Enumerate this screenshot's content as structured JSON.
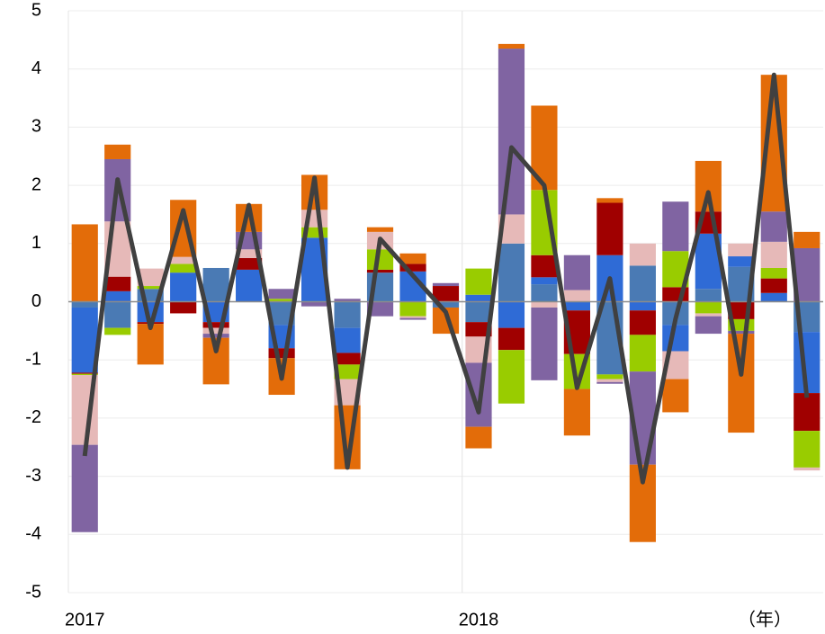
{
  "chart_data": {
    "type": "bar",
    "stacked": true,
    "categories": [
      "2017",
      null,
      null,
      null,
      null,
      null,
      null,
      null,
      null,
      null,
      null,
      null,
      "2018",
      null,
      null,
      null,
      null,
      null,
      null,
      null,
      null,
      null,
      null
    ],
    "x_label": "（年）",
    "series": [
      {
        "color": "#4a7ab4",
        "values": [
          -0.1,
          -0.45,
          0.22,
          0,
          0.58,
          0,
          -0.4,
          0,
          -0.45,
          0.5,
          0,
          -0.1,
          -0.35,
          1.0,
          0.3,
          0,
          -1.25,
          0.62,
          -0.4,
          0.22,
          0.6,
          0,
          -0.52
        ]
      },
      {
        "color": "#2f6bd6",
        "values": [
          -1.12,
          0.18,
          -0.35,
          0.5,
          -0.35,
          0.55,
          -0.4,
          1.1,
          -0.43,
          0,
          0.52,
          0,
          0.12,
          -0.45,
          0.12,
          -0.15,
          0.8,
          -0.15,
          -0.45,
          0.95,
          0.18,
          0.15,
          -1.05
        ]
      },
      {
        "color": "#a00000",
        "values": [
          -0.02,
          0.25,
          -0.03,
          -0.2,
          -0.1,
          0.2,
          -0.17,
          0,
          -0.2,
          0.05,
          0.13,
          0.27,
          -0.25,
          -0.38,
          0.38,
          -0.75,
          0.9,
          -0.42,
          0.25,
          0.38,
          -0.3,
          0.25,
          -0.65
        ]
      },
      {
        "color": "#99cc00",
        "values": [
          -0.02,
          -0.12,
          0.05,
          0.15,
          0,
          0,
          0.05,
          0.18,
          -0.25,
          0.35,
          -0.25,
          0,
          0.45,
          -0.92,
          1.12,
          -0.6,
          -0.08,
          -0.63,
          0.62,
          -0.2,
          -0.2,
          0.18,
          -0.63
        ]
      },
      {
        "color": "#e6b9b8",
        "values": [
          -1.2,
          0.95,
          0.3,
          0.12,
          -0.1,
          0.15,
          0,
          0.3,
          -0.45,
          0.3,
          -0.03,
          0,
          -0.45,
          0.5,
          -0.1,
          0.2,
          -0.05,
          0.38,
          -0.48,
          -0.05,
          0.22,
          0.45,
          -0.05
        ]
      },
      {
        "color": "#8064a2",
        "values": [
          -1.5,
          1.07,
          0,
          0,
          -0.07,
          0.3,
          0.17,
          -0.08,
          0.05,
          -0.25,
          -0.03,
          0.05,
          -1.1,
          2.85,
          -1.25,
          0.6,
          -0.03,
          -1.6,
          0.85,
          -0.3,
          -0.05,
          0.52,
          0.92
        ]
      },
      {
        "color": "#e36c09",
        "values": [
          1.33,
          0.25,
          -0.7,
          0.98,
          -0.8,
          0.48,
          -0.63,
          0.6,
          -1.1,
          0.08,
          0.18,
          -0.45,
          -0.37,
          0.08,
          1.45,
          -0.8,
          0.08,
          -1.33,
          -0.57,
          0.87,
          -1.7,
          2.35,
          0.28
        ]
      },
      {
        "type": "line",
        "color": "#404040",
        "values": [
          -2.65,
          2.1,
          -0.45,
          1.57,
          -0.85,
          1.66,
          -1.32,
          2.13,
          -2.85,
          1.08,
          0.45,
          -0.18,
          -1.9,
          2.65,
          2.0,
          -1.48,
          0.4,
          -3.1,
          -0.3,
          1.88,
          -1.25,
          3.9,
          -1.65
        ]
      }
    ],
    "ylim": [
      -5,
      5
    ],
    "yticks": [
      -5,
      -4,
      -3,
      -2,
      -1,
      0,
      1,
      2,
      3,
      4,
      5
    ],
    "grid": true
  }
}
